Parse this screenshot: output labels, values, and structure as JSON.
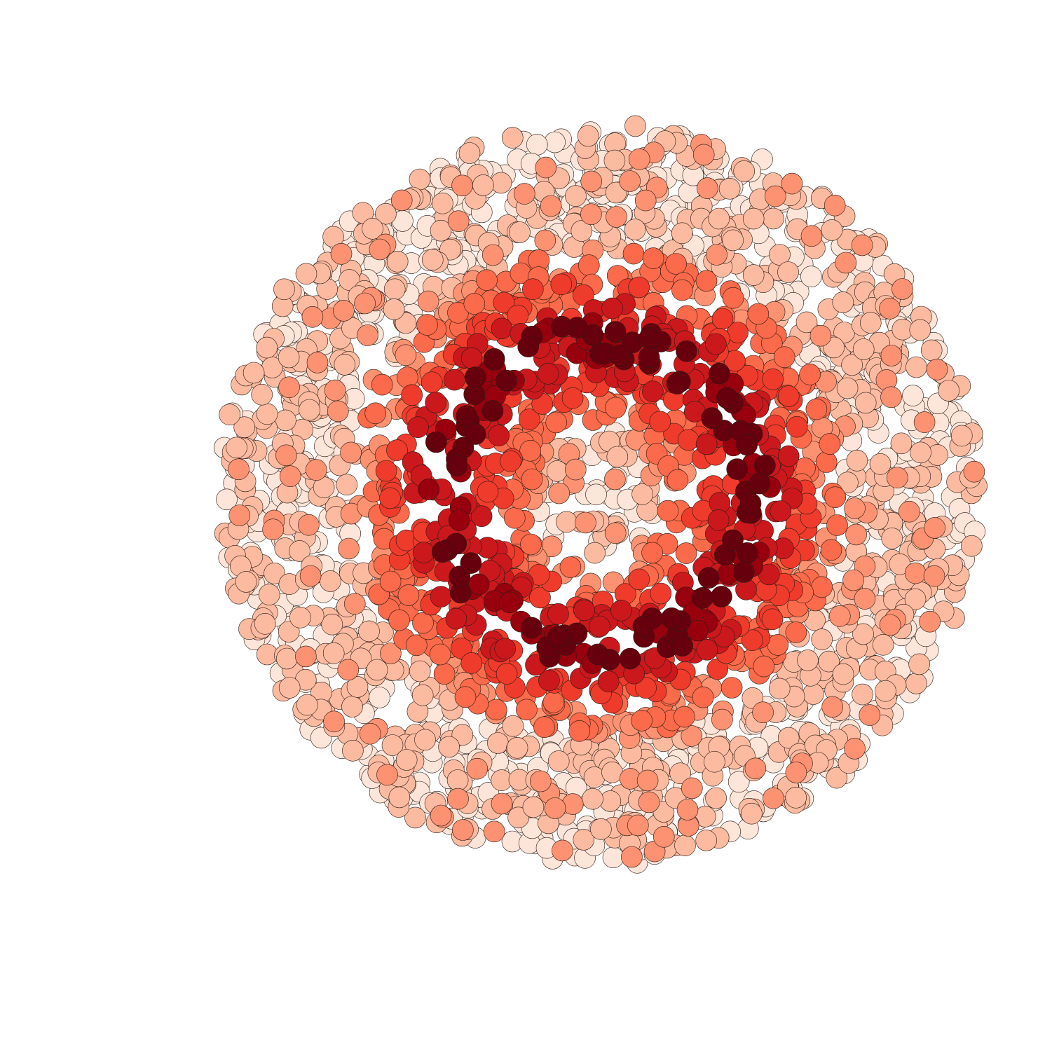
{
  "figure": {
    "background_color": "#ffffff",
    "outline_color": "#2b1a14",
    "palette": [
      "#fee5d9",
      "#fcbba1",
      "#fc9272",
      "#fb6a4a",
      "#ef3b2c",
      "#cb181d",
      "#99000d",
      "#67000d"
    ],
    "description_tags": [
      "scatter-disc",
      "red-gradient",
      "ring-pattern"
    ]
  }
}
